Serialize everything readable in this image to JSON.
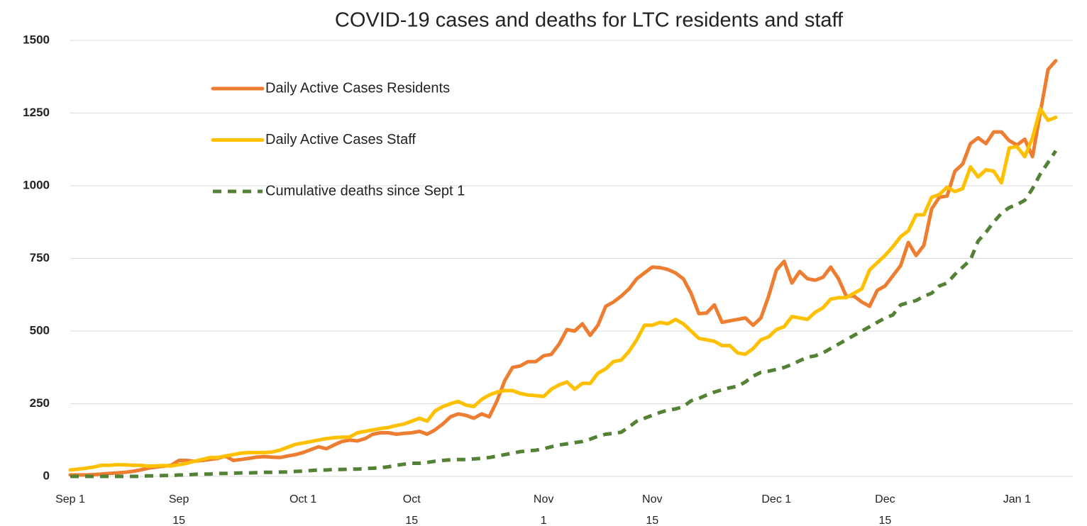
{
  "chart_data": {
    "type": "line",
    "title": "COVID-19 cases and deaths for LTC residents and staff",
    "categories": [
      "Sep 1",
      null,
      null,
      null,
      null,
      null,
      null,
      null,
      null,
      null,
      null,
      null,
      null,
      null,
      "Sep\n15",
      null,
      null,
      null,
      null,
      null,
      null,
      null,
      null,
      null,
      null,
      null,
      null,
      null,
      null,
      null,
      "Oct 1",
      null,
      null,
      null,
      null,
      null,
      null,
      null,
      null,
      null,
      null,
      null,
      null,
      null,
      "Oct\n15",
      null,
      null,
      null,
      null,
      null,
      null,
      null,
      null,
      null,
      null,
      null,
      null,
      null,
      null,
      null,
      null,
      "Nov\n1",
      null,
      null,
      null,
      null,
      null,
      null,
      null,
      null,
      null,
      null,
      null,
      null,
      null,
      "Nov\n15",
      null,
      null,
      null,
      null,
      null,
      null,
      null,
      null,
      null,
      null,
      null,
      null,
      null,
      null,
      null,
      "Dec 1",
      null,
      null,
      null,
      null,
      null,
      null,
      null,
      null,
      null,
      null,
      null,
      null,
      null,
      "Dec\n15",
      null,
      null,
      null,
      null,
      null,
      null,
      null,
      null,
      null,
      null,
      null,
      null,
      null,
      null,
      null,
      null,
      "Jan 1",
      null,
      null,
      null,
      null,
      null
    ],
    "series": [
      {
        "name": "Daily Active Cases Residents",
        "color": "#ed7d31",
        "dashed": false,
        "values": [
          5,
          5,
          5,
          6,
          8,
          10,
          12,
          14,
          17,
          22,
          28,
          32,
          35,
          38,
          55,
          55,
          52,
          55,
          58,
          62,
          70,
          55,
          58,
          62,
          66,
          68,
          66,
          65,
          70,
          75,
          82,
          92,
          102,
          95,
          108,
          120,
          125,
          122,
          130,
          145,
          150,
          150,
          145,
          148,
          150,
          155,
          145,
          160,
          180,
          205,
          215,
          210,
          200,
          215,
          205,
          260,
          330,
          375,
          380,
          395,
          395,
          415,
          420,
          455,
          505,
          500,
          525,
          485,
          520,
          585,
          600,
          620,
          645,
          680,
          700,
          720,
          718,
          712,
          700,
          680,
          630,
          560,
          562,
          590,
          530,
          535,
          540,
          545,
          520,
          545,
          620,
          710,
          740,
          665,
          705,
          680,
          675,
          685,
          720,
          680,
          620,
          620,
          600,
          585,
          640,
          655,
          690,
          725,
          805,
          760,
          795,
          920,
          960,
          965,
          1050,
          1075,
          1145,
          1165,
          1145,
          1185,
          1185,
          1155,
          1140,
          1160,
          1100,
          1250,
          1400,
          1430
        ]
      },
      {
        "name": "Daily Active Cases Staff",
        "color": "#ffc000",
        "dashed": false,
        "values": [
          22,
          25,
          28,
          32,
          38,
          38,
          40,
          40,
          38,
          38,
          35,
          36,
          37,
          36,
          40,
          45,
          52,
          58,
          65,
          65,
          70,
          75,
          80,
          82,
          82,
          82,
          84,
          90,
          100,
          110,
          115,
          120,
          125,
          130,
          133,
          135,
          135,
          150,
          155,
          160,
          165,
          168,
          175,
          180,
          190,
          200,
          190,
          225,
          240,
          250,
          258,
          245,
          240,
          265,
          280,
          290,
          295,
          295,
          285,
          280,
          278,
          275,
          300,
          315,
          325,
          300,
          320,
          320,
          355,
          370,
          395,
          400,
          430,
          470,
          520,
          520,
          530,
          525,
          540,
          525,
          500,
          475,
          470,
          465,
          450,
          450,
          425,
          420,
          440,
          470,
          480,
          505,
          515,
          550,
          545,
          540,
          565,
          580,
          610,
          615,
          615,
          630,
          645,
          710,
          735,
          760,
          790,
          825,
          845,
          900,
          900,
          960,
          970,
          995,
          980,
          990,
          1065,
          1030,
          1055,
          1050,
          1010,
          1130,
          1135,
          1100,
          1165,
          1265,
          1225,
          1235
        ]
      },
      {
        "name": "Cumulative deaths since Sept 1",
        "color": "#548235",
        "dashed": true,
        "values": [
          0,
          0,
          0,
          0,
          0,
          0,
          0,
          0,
          0,
          0,
          2,
          2,
          3,
          3,
          5,
          5,
          7,
          8,
          8,
          10,
          10,
          11,
          12,
          12,
          13,
          14,
          14,
          15,
          15,
          17,
          18,
          20,
          22,
          22,
          24,
          24,
          25,
          25,
          27,
          28,
          30,
          33,
          38,
          42,
          45,
          45,
          48,
          52,
          55,
          57,
          58,
          58,
          60,
          62,
          65,
          70,
          75,
          80,
          85,
          88,
          90,
          95,
          102,
          108,
          112,
          116,
          120,
          128,
          138,
          145,
          148,
          152,
          170,
          190,
          200,
          210,
          220,
          228,
          232,
          240,
          260,
          268,
          280,
          290,
          298,
          305,
          310,
          325,
          345,
          358,
          362,
          368,
          375,
          385,
          398,
          410,
          415,
          425,
          440,
          455,
          470,
          485,
          500,
          515,
          530,
          545,
          555,
          590,
          598,
          605,
          620,
          630,
          655,
          665,
          695,
          720,
          745,
          810,
          840,
          875,
          905,
          925,
          935,
          950,
          990,
          1040,
          1080,
          1120
        ]
      }
    ],
    "ylim": [
      0,
      1500
    ],
    "yticks": [
      0,
      250,
      500,
      750,
      1000,
      1250,
      1500
    ],
    "grid": true
  }
}
